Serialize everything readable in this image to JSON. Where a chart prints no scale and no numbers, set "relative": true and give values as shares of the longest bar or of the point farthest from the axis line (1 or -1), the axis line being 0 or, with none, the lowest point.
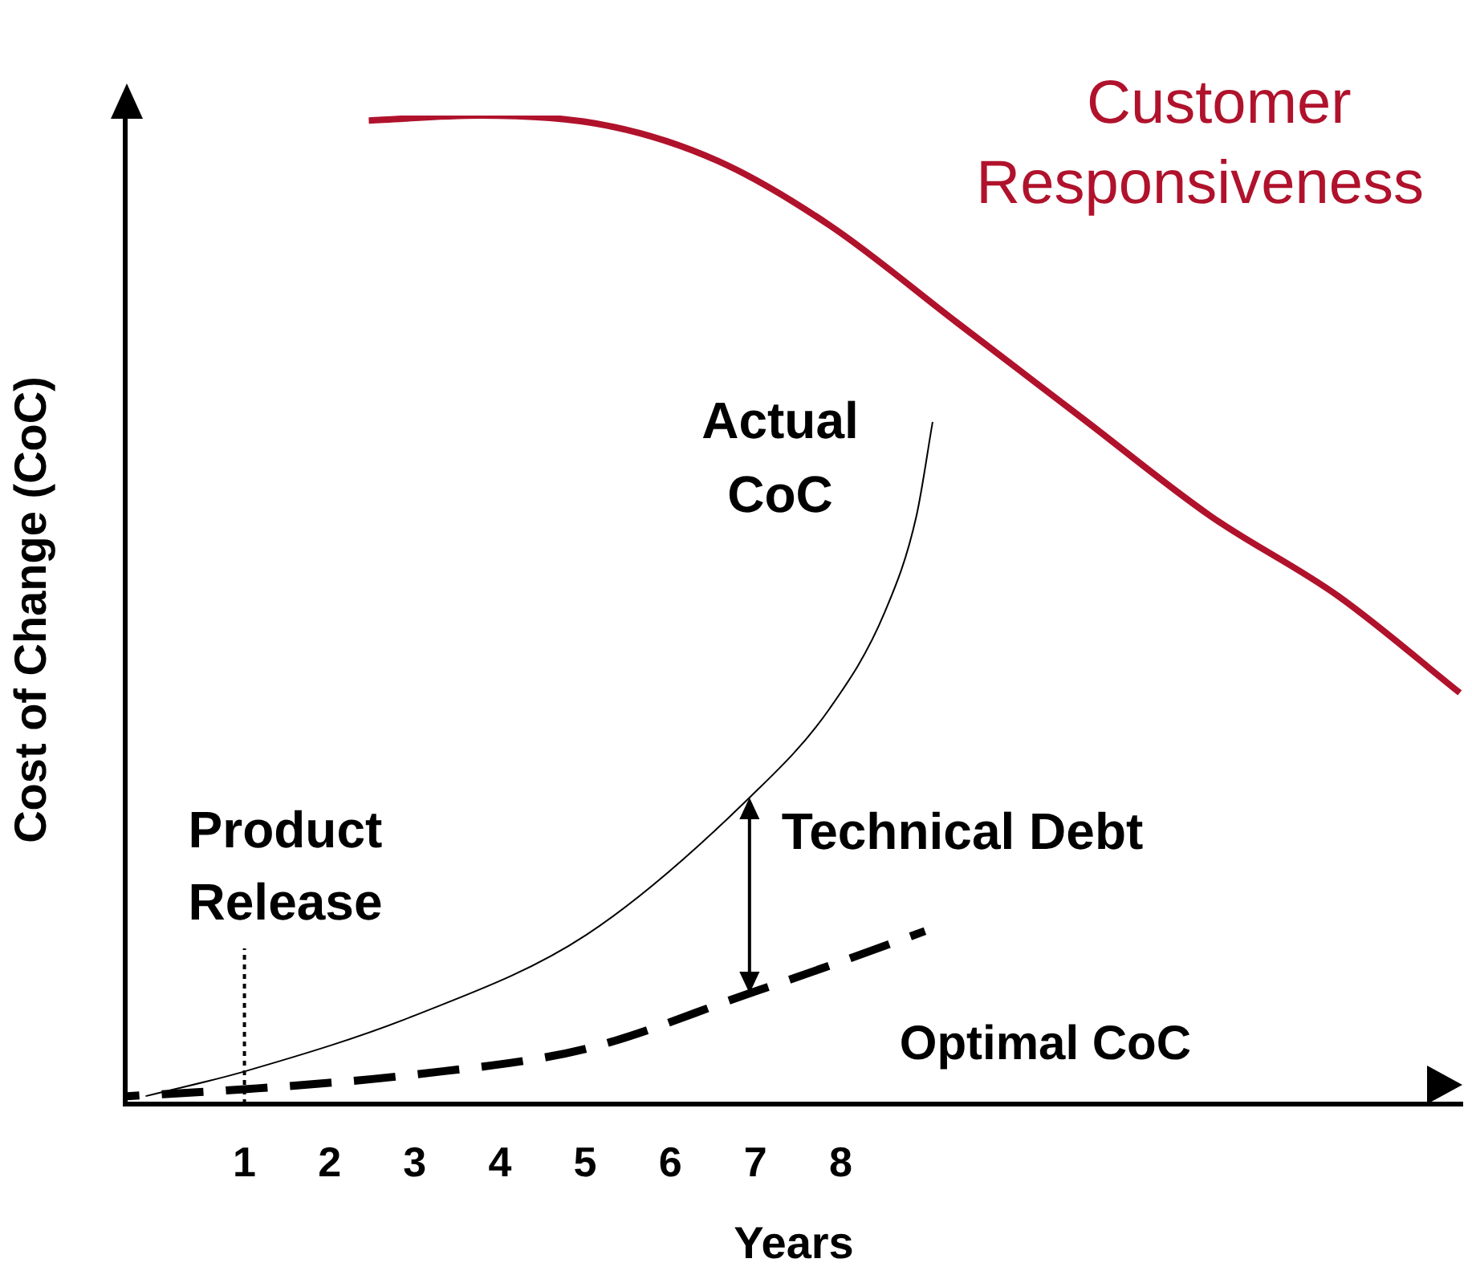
{
  "chart_data": {
    "type": "line",
    "relative": true,
    "xlabel": "Years",
    "ylabel": "Cost of Change (CoC)",
    "xlim": [
      -0.4,
      15.3
    ],
    "xticks": [
      1,
      2,
      3,
      4,
      5,
      6,
      7,
      8
    ],
    "grid": false,
    "legend": false,
    "marker": "none",
    "series": [
      {
        "name": "Customer Responsiveness",
        "color": "#b0122c",
        "line_style": "solid",
        "x": [
          2.46,
          3.76,
          5.25,
          6.56,
          7.87,
          9.36,
          10.85,
          12.34,
          13.84,
          15.27
        ],
        "values": [
          0.995,
          1.0,
          0.99,
          0.954,
          0.889,
          0.791,
          0.693,
          0.595,
          0.514,
          0.416
        ]
      },
      {
        "name": "Actual CoC",
        "color": "#000000",
        "line_style": "solid",
        "x": [
          -0.16,
          1,
          3.01,
          5.01,
          6.93,
          7.87,
          8.52,
          8.89,
          9.08
        ],
        "values": [
          0.008,
          0.033,
          0.09,
          0.171,
          0.31,
          0.4,
          0.498,
          0.595,
          0.69
        ]
      },
      {
        "name": "Optimal CoC",
        "color": "#000000",
        "line_style": "dashed",
        "x": [
          -0.38,
          1,
          3.01,
          5.01,
          6.93,
          7.87,
          8.99
        ],
        "values": [
          0.008,
          0.015,
          0.03,
          0.056,
          0.112,
          0.14,
          0.175
        ]
      }
    ],
    "ref_lines": [
      {
        "axis": "x",
        "value": 1,
        "label": "Product Release",
        "line_style": "dotted",
        "color": "#000000"
      }
    ],
    "annotations": [
      {
        "text": "Technical Debt",
        "x": 6.93,
        "y": 0.31
      }
    ]
  }
}
